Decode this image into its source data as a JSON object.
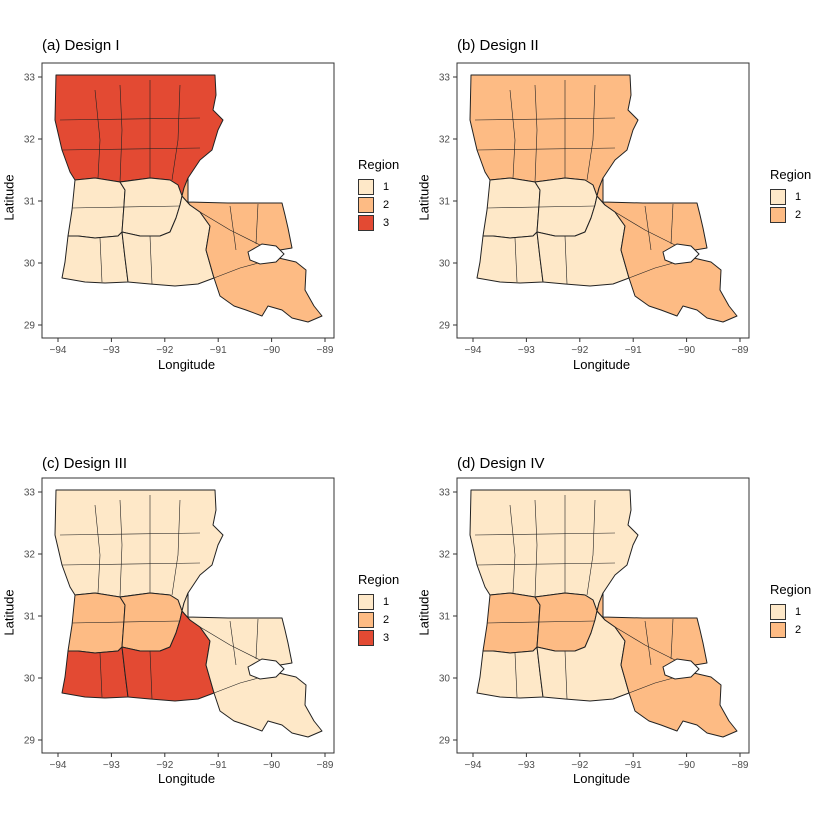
{
  "figure": {
    "panels": [
      {
        "title": "(a) Design I",
        "xlabel": "Longitude",
        "ylabel": "Latitude",
        "x_ticks": [
          "−94",
          "−93",
          "−92",
          "−91",
          "−90",
          "−89"
        ],
        "y_ticks": [
          "33",
          "32",
          "31",
          "30",
          "29"
        ],
        "legend": {
          "title": "Region",
          "items": [
            {
              "label": "1",
              "color": "#fee8c8"
            },
            {
              "label": "2",
              "color": "#fdbb84"
            },
            {
              "label": "3",
              "color": "#e34a33"
            }
          ]
        },
        "map_zones": {
          "north": 3,
          "central_west": 1,
          "central_east": 1,
          "southwest": 1,
          "south_central": 1,
          "southeast": 2
        }
      },
      {
        "title": "(b) Design II",
        "xlabel": "Longitude",
        "ylabel": "Latitude",
        "x_ticks": [
          "−94",
          "−93",
          "−92",
          "−91",
          "−90",
          "−89"
        ],
        "y_ticks": [
          "33",
          "32",
          "31",
          "30",
          "29"
        ],
        "legend": {
          "title": "Region",
          "items": [
            {
              "label": "1",
              "color": "#fee8c8"
            },
            {
              "label": "2",
              "color": "#fdbb84"
            }
          ]
        },
        "map_zones": {
          "north": 2,
          "central_west": 1,
          "central_east": 1,
          "southwest": 1,
          "south_central": 1,
          "southeast": 2
        }
      },
      {
        "title": "(c) Design III",
        "xlabel": "Longitude",
        "ylabel": "Latitude",
        "x_ticks": [
          "−94",
          "−93",
          "−92",
          "−91",
          "−90",
          "−89"
        ],
        "y_ticks": [
          "33",
          "32",
          "31",
          "30",
          "29"
        ],
        "legend": {
          "title": "Region",
          "items": [
            {
              "label": "1",
              "color": "#fee8c8"
            },
            {
              "label": "2",
              "color": "#fdbb84"
            },
            {
              "label": "3",
              "color": "#e34a33"
            }
          ]
        },
        "map_zones": {
          "north": 1,
          "central_west": 2,
          "central_east": 2,
          "southwest": 3,
          "south_central": 3,
          "southeast": 1
        }
      },
      {
        "title": "(d) Design IV",
        "xlabel": "Longitude",
        "ylabel": "Latitude",
        "x_ticks": [
          "−94",
          "−93",
          "−92",
          "−91",
          "−90",
          "−89"
        ],
        "y_ticks": [
          "33",
          "32",
          "31",
          "30",
          "29"
        ],
        "legend": {
          "title": "Region",
          "items": [
            {
              "label": "1",
              "color": "#fee8c8"
            },
            {
              "label": "2",
              "color": "#fdbb84"
            }
          ]
        },
        "map_zones": {
          "north": 1,
          "central_west": 2,
          "central_east": 2,
          "southwest": 1,
          "south_central": 1,
          "southeast": 2
        }
      }
    ]
  }
}
